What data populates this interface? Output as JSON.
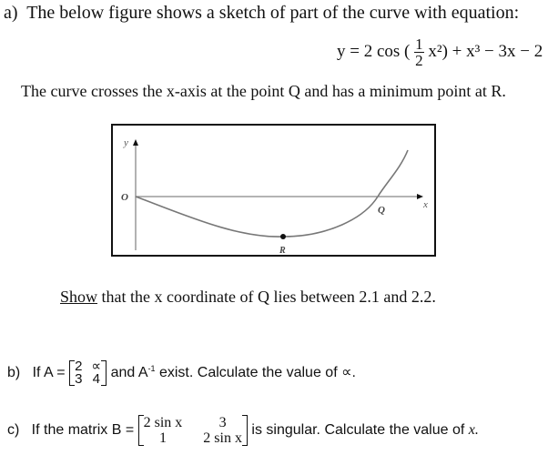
{
  "part_a": {
    "label": "a)",
    "intro": "The below figure shows a sketch of part of the curve with equation:",
    "equation": {
      "lhs": "y = 2 cos (",
      "frac_num": "1",
      "frac_den": "2",
      "rest": "x²) + x³ − 3x − 2"
    },
    "description": "The curve crosses the x-axis at the point Q and has a minimum point at R.",
    "figure": {
      "y_axis_label": "y",
      "x_axis_label": "x",
      "origin_label": "O",
      "point_q_label": "Q",
      "point_r_label": "R"
    },
    "show_word": "Show",
    "task": " that the x coordinate of Q lies between 2.1 and 2.2."
  },
  "part_b": {
    "label": "b)",
    "prefix": "If A =",
    "matrix": [
      [
        "2",
        "∝"
      ],
      [
        "3",
        "4"
      ]
    ],
    "mid": "and A",
    "sup": "-1",
    "suffix": " exist. Calculate the value of ∝."
  },
  "part_c": {
    "label": "c)",
    "prefix": "If the matrix B =",
    "matrix": [
      [
        "2 sin x",
        "3"
      ],
      [
        "1",
        "2 sin x"
      ]
    ],
    "suffix": "is singular. Calculate the value of",
    "var": "x."
  }
}
